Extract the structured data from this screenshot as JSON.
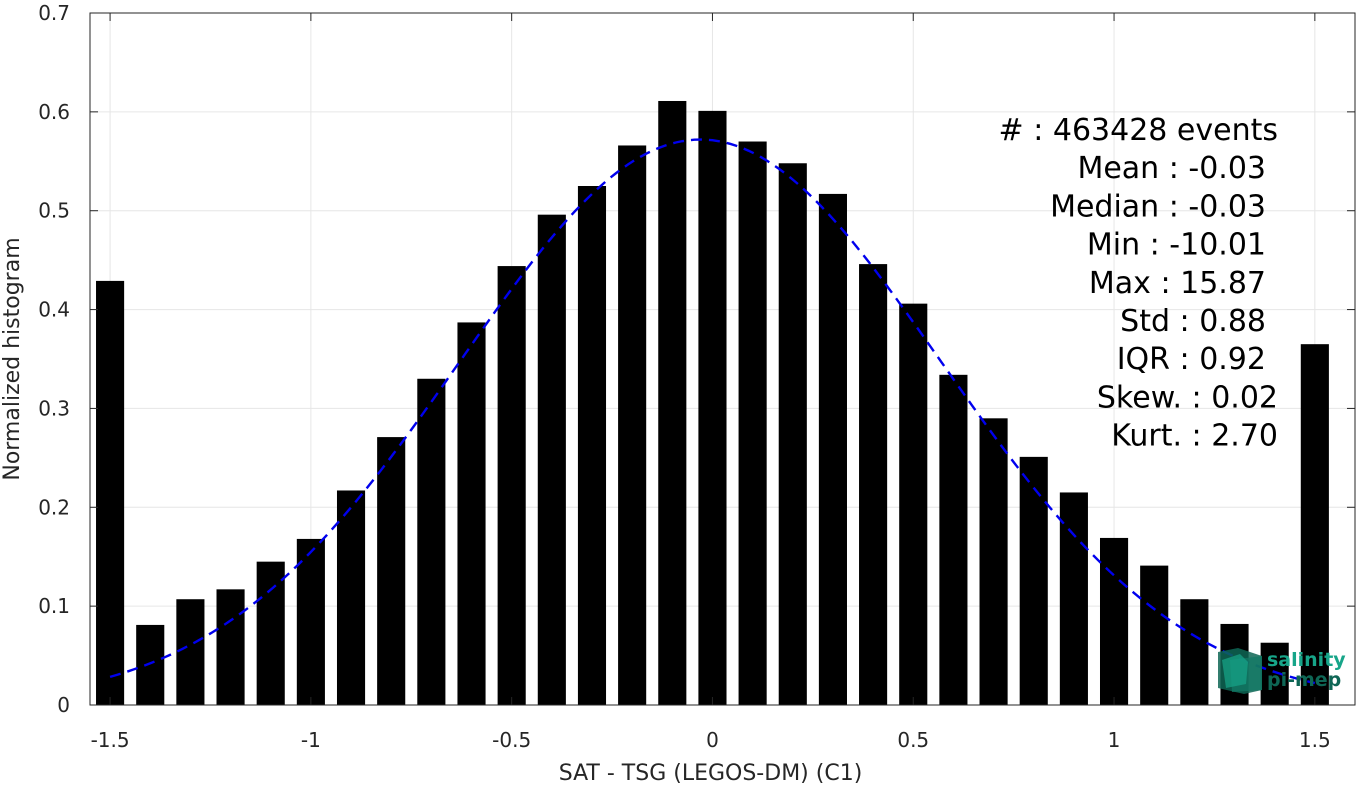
{
  "chart_data": {
    "type": "bar",
    "xlabel": "SAT - TSG (LEGOS-DM) (C1)",
    "ylabel": "Normalized histogram",
    "xlim": [
      -1.55,
      1.6
    ],
    "ylim": [
      0,
      0.7
    ],
    "x_ticks": [
      -1.5,
      -1,
      -0.5,
      0,
      0.5,
      1,
      1.5
    ],
    "x_tick_labels": [
      "-1.5",
      "-1",
      "-0.5",
      "0",
      "0.5",
      "1",
      "1.5"
    ],
    "y_ticks": [
      0,
      0.1,
      0.2,
      0.3,
      0.4,
      0.5,
      0.6,
      0.7
    ],
    "y_tick_labels": [
      "0",
      "0.1",
      "0.2",
      "0.3",
      "0.4",
      "0.5",
      "0.6",
      "0.7"
    ],
    "grid": true,
    "bar_width": 0.07,
    "x": [
      -1.5,
      -1.4,
      -1.3,
      -1.2,
      -1.1,
      -1.0,
      -0.9,
      -0.8,
      -0.7,
      -0.6,
      -0.5,
      -0.4,
      -0.3,
      -0.2,
      -0.1,
      0.0,
      0.1,
      0.2,
      0.3,
      0.4,
      0.5,
      0.6,
      0.7,
      0.8,
      0.9,
      1.0,
      1.1,
      1.2,
      1.3,
      1.4,
      1.5
    ],
    "values": [
      0.429,
      0.081,
      0.107,
      0.117,
      0.145,
      0.168,
      0.217,
      0.271,
      0.33,
      0.387,
      0.444,
      0.496,
      0.525,
      0.566,
      0.611,
      0.601,
      0.57,
      0.548,
      0.517,
      0.446,
      0.406,
      0.334,
      0.29,
      0.251,
      0.215,
      0.169,
      0.141,
      0.107,
      0.082,
      0.063,
      0.365
    ],
    "fit_curve": {
      "style": "dashed",
      "color": "#0000ee",
      "x_range": [
        -1.5,
        1.5
      ],
      "mean": -0.03,
      "peak": 0.572,
      "sigma": 0.6
    },
    "stats": [
      "#   : 463428 events",
      "Mean : -0.03",
      "Median : -0.03",
      "Min : -10.01",
      "Max : 15.87",
      "Std : 0.88",
      "IQR : 0.92",
      "Skew. : 0.02",
      "Kurt. : 2.70"
    ],
    "legend_placement": "top-right"
  },
  "logo": {
    "line1": "salinity",
    "line2": "pi-mep",
    "color": "#17a589"
  },
  "colors": {
    "bar": "#000000",
    "grid": "#e6e6e6",
    "axis": "#262626"
  }
}
